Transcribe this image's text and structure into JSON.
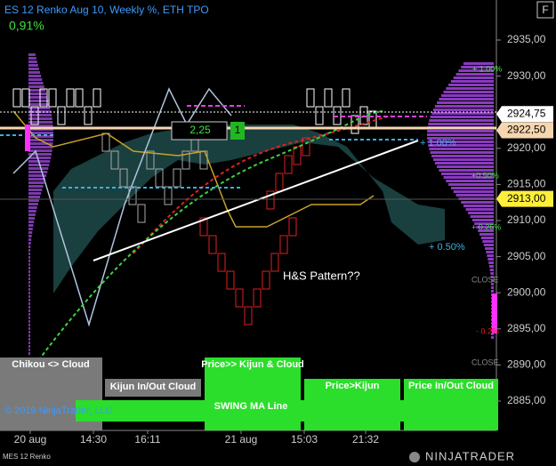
{
  "header": {
    "title": "ES 12 Renko Aug 10, Weekly %, ETH TPO",
    "change": "0,91%",
    "button": "F"
  },
  "price_axis": {
    "lim": [
      2881,
      2939
    ],
    "ticks": [
      {
        "value": 2935,
        "label": "2935,00"
      },
      {
        "value": 2930,
        "label": "2930,00"
      },
      {
        "value": 2925,
        "label": "2925,00"
      },
      {
        "value": 2920,
        "label": "2920,00"
      },
      {
        "value": 2915,
        "label": "2915,00"
      },
      {
        "value": 2910,
        "label": "2910,00"
      },
      {
        "value": 2905,
        "label": "2905,00"
      },
      {
        "value": 2900,
        "label": "2900,00"
      },
      {
        "value": 2895,
        "label": "2895,00"
      },
      {
        "value": 2890,
        "label": "2890,00"
      },
      {
        "value": 2885,
        "label": "2885,00"
      }
    ],
    "markers": [
      {
        "value": 2924.75,
        "label": "2924,75",
        "color": "#ffffff"
      },
      {
        "value": 2922.5,
        "label": "2922,50",
        "color": "#f5d6b0"
      },
      {
        "value": 2913,
        "label": "2913,00",
        "color": "#ffef3a"
      }
    ]
  },
  "time_axis": [
    "20 aug",
    "14:30",
    "16:11",
    "21 aug",
    "15:03",
    "21:32"
  ],
  "annotations": {
    "pattern": "H&S Pattern??",
    "brick_size": "2,25",
    "count": "1"
  },
  "level_labels": [
    "+ 1.00%",
    "+ 1.00%",
    "+0.50%",
    "+ 0.25%",
    "+ 0.50%",
    "CLOSE",
    "- 0.2%",
    "CLOSE"
  ],
  "panels": [
    "Chikou <> Cloud",
    "Kijun In/Out Cloud",
    "Price>> Kijun & Cloud",
    "Price>Kijun",
    "Price In/Out Cloud",
    "SWING MA  Line"
  ],
  "footer": {
    "copyright": "© 2019 NinjaTrader, LLC",
    "instrument": "MES 12 Renko",
    "logo": "NINJATRADER"
  }
}
